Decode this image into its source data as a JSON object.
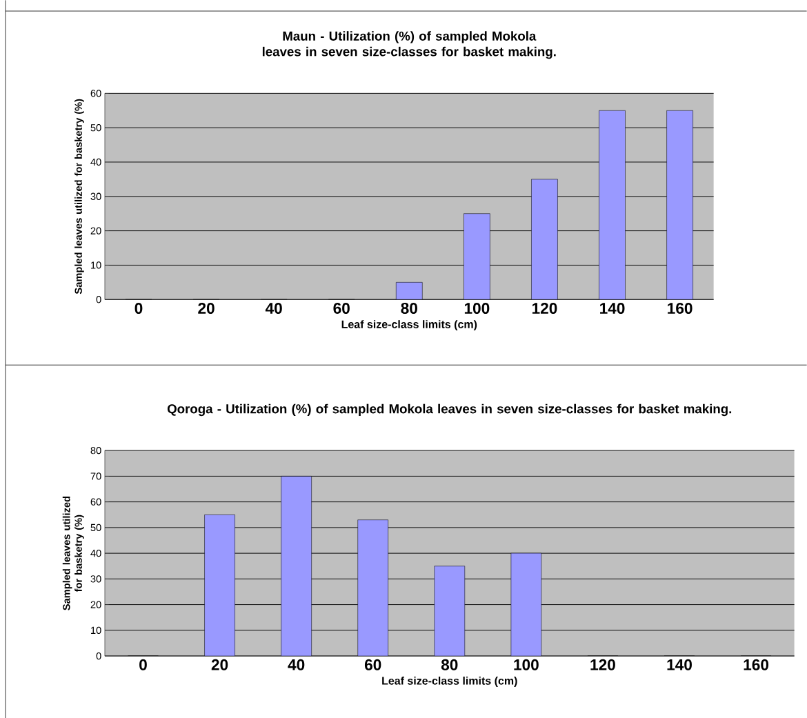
{
  "chart_data": [
    {
      "type": "bar",
      "title": "Maun - Utilization (%) of sampled Mokola leaves in seven size-classes for basket making.",
      "xlabel": "Leaf size-class limits (cm)",
      "ylabel": "Sampled leaves utilized for basketry (%)",
      "categories": [
        "0",
        "20",
        "40",
        "60",
        "80",
        "100",
        "120",
        "140",
        "160"
      ],
      "values": [
        0,
        0,
        0,
        0,
        5,
        25,
        35,
        55,
        55
      ],
      "color": "#9999ff",
      "ylim": [
        0,
        60
      ],
      "yticks": [
        0,
        10,
        20,
        30,
        40,
        50,
        60
      ],
      "grid": "y"
    },
    {
      "type": "bar",
      "title": "Qoroga - Utilization (%) of sampled Mokola leaves in seven size-classes for basket making.",
      "xlabel": "Leaf size-class limits (cm)",
      "ylabel": "Sampled leaves utilized for basketry (%)",
      "categories": [
        "0",
        "20",
        "40",
        "60",
        "80",
        "100",
        "120",
        "140",
        "160"
      ],
      "values": [
        0,
        55,
        70,
        53,
        35,
        40,
        0,
        0,
        0
      ],
      "color": "#9999ff",
      "ylim": [
        0,
        80
      ],
      "yticks": [
        0,
        10,
        20,
        30,
        40,
        50,
        60,
        70,
        80
      ],
      "grid": "y"
    }
  ]
}
